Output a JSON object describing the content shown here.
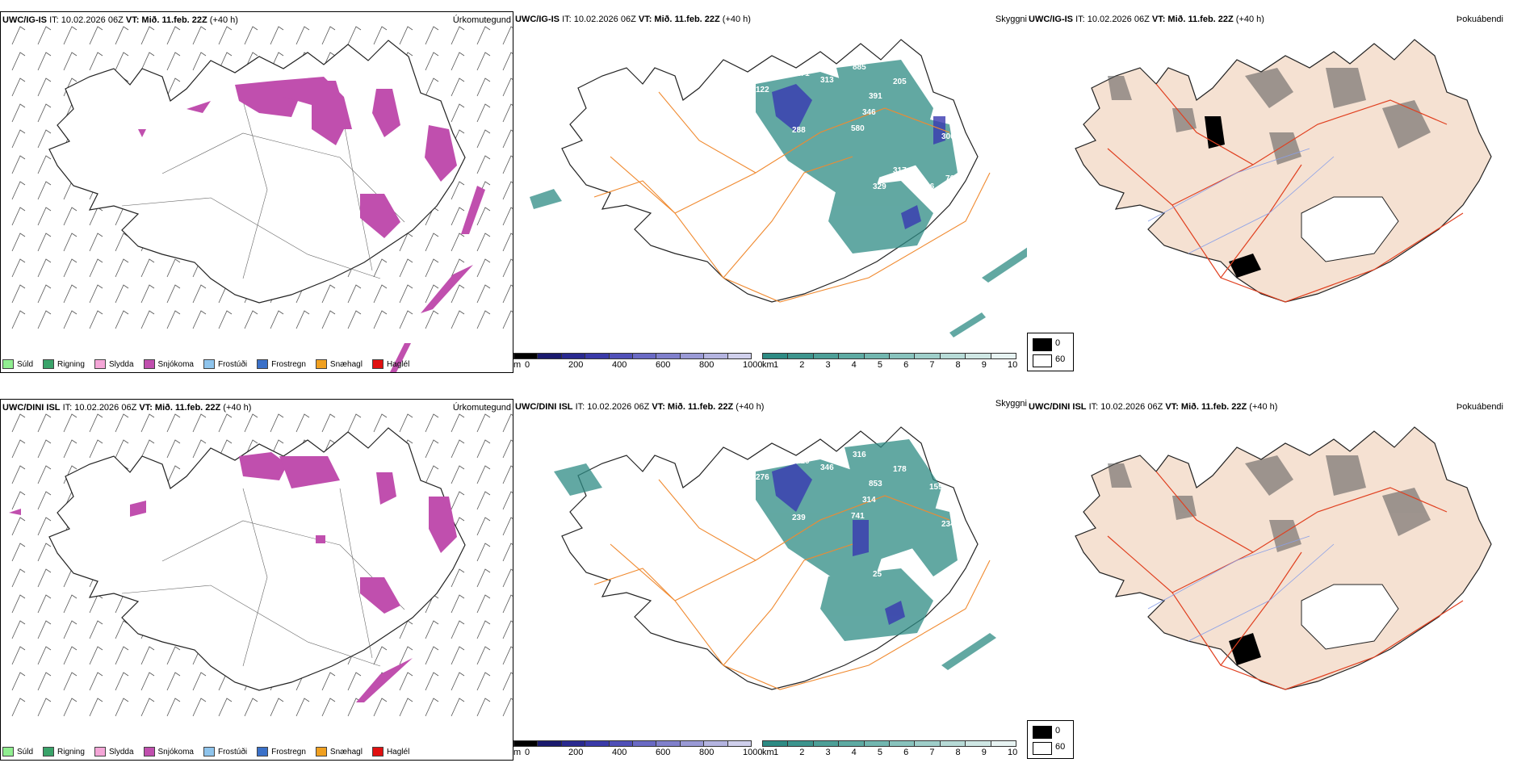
{
  "rows": [
    {
      "model_code": "UWC/IG-IS",
      "it": "IT: 10.02.2026 06Z",
      "vt_label": "VT:",
      "vt": "Mið. 11.feb. 22Z",
      "lead": "(+40 h)",
      "ceiling_labels": [
        "122",
        "271",
        "313",
        "885",
        "205",
        "391",
        "346",
        "288",
        "580",
        "403",
        "274",
        "300",
        "317",
        "329",
        "116",
        "76"
      ]
    },
    {
      "model_code": "UWC/DINI ISL",
      "it": "IT: 10.02.2026 06Z",
      "vt_label": "VT:",
      "vt": "Mið. 11.feb. 22Z",
      "lead": "(+40 h)",
      "ceiling_labels": [
        "276",
        "229",
        "346",
        "316",
        "178",
        "853",
        "314",
        "239",
        "741",
        "159",
        "35",
        "234",
        "291",
        "25"
      ]
    }
  ],
  "panel_titles": {
    "precip": "Úrkomutegund",
    "clouds": "Skyggni",
    "fog": "Þokuábendi"
  },
  "precip_legend": [
    {
      "label": "Súld",
      "color": "#90ee90"
    },
    {
      "label": "Rigning",
      "color": "#3aa36a"
    },
    {
      "label": "Slydda",
      "color": "#f4a6d7"
    },
    {
      "label": "Snjókoma",
      "color": "#c04fae"
    },
    {
      "label": "Frostúði",
      "color": "#8ec4ec"
    },
    {
      "label": "Frostregn",
      "color": "#3a70c8"
    },
    {
      "label": "Snæhagl",
      "color": "#f0a020"
    },
    {
      "label": "Haglél",
      "color": "#e01010"
    }
  ],
  "ceiling_scale": {
    "unit": "m",
    "ticks": [
      "0",
      "200",
      "400",
      "600",
      "800",
      "1000"
    ]
  },
  "vis_scale": {
    "unit": "km",
    "ticks": [
      "1",
      "2",
      "3",
      "4",
      "5",
      "6",
      "7",
      "8",
      "9",
      "10"
    ]
  },
  "fog_legend": {
    "high": "0",
    "low": "60"
  },
  "colors": {
    "snow": "#c04fae",
    "teal": "#2e8b84",
    "blue": "#3838b0",
    "road": "#f08a30",
    "land": "#f5e1d2",
    "red": "#e04020"
  }
}
